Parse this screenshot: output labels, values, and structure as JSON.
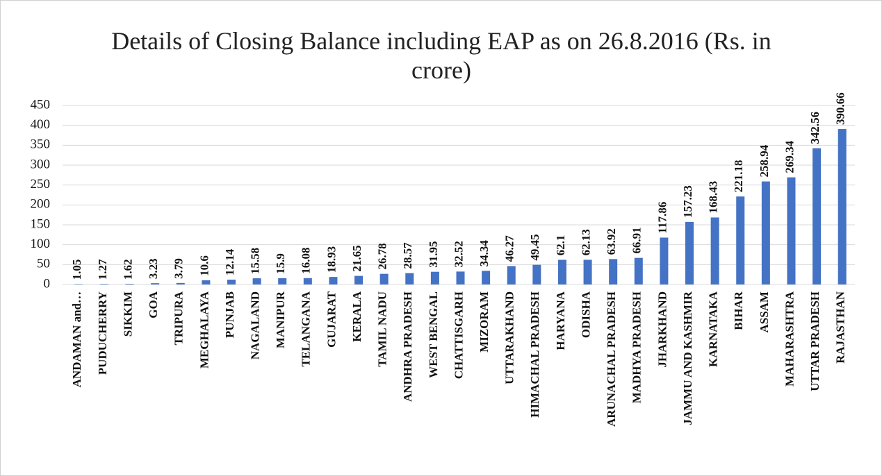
{
  "chart_data": {
    "type": "bar",
    "title": "Details of Closing Balance including EAP as on 26.8.2016 (Rs. in crore)",
    "categories": [
      "ANDAMAN and…",
      "PUDUCHERRY",
      "SIKKIM",
      "GOA",
      "TRIPURA",
      "MEGHALAYA",
      "PUNJAB",
      "NAGALAND",
      "MANIPUR",
      "TELANGANA",
      "GUJARAT",
      "KERALA",
      "TAMIL NADU",
      "ANDHRA PRADESH",
      "WEST BENGAL",
      "CHATTISGARH",
      "MIZORAM",
      "UTTARAKHAND",
      "HIMACHAL PRADESH",
      "HARYANA",
      "ODISHA",
      "ARUNACHAL PRADESH",
      "MADHYA PRADESH",
      "JHARKHAND",
      "JAMMU AND KASHMIR",
      "KARNATAKA",
      "BIHAR",
      "ASSAM",
      "MAHARASHTRA",
      "UTTAR PRADESH",
      "RAJASTHAN"
    ],
    "values": [
      1.05,
      1.27,
      1.62,
      3.23,
      3.79,
      10.6,
      12.14,
      15.58,
      15.9,
      16.08,
      18.93,
      21.65,
      26.78,
      28.57,
      31.95,
      32.52,
      34.34,
      46.27,
      49.45,
      62.1,
      62.13,
      63.92,
      66.91,
      117.86,
      157.23,
      168.43,
      221.18,
      258.94,
      269.34,
      342.56,
      390.66
    ],
    "color": "#4472c4",
    "ylim": [
      0,
      450
    ],
    "yticks": [
      0,
      50,
      100,
      150,
      200,
      250,
      300,
      350,
      400,
      450
    ],
    "grid": true
  }
}
